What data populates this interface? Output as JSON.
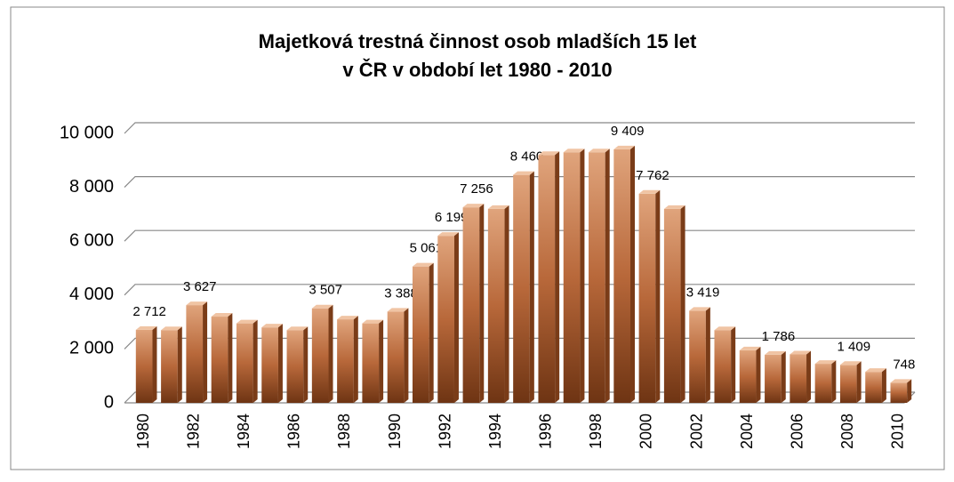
{
  "chart_data": {
    "type": "bar",
    "title": [
      "Majetková trestná činnost osob mladších 15 let",
      "v ČR v období let 1980 - 2010"
    ],
    "categories": [
      "1980",
      null,
      "1982",
      null,
      "1984",
      null,
      "1986",
      null,
      "1988",
      null,
      "1990",
      null,
      "1992",
      null,
      "1994",
      null,
      "1996",
      null,
      "1998",
      null,
      "2000",
      null,
      "2002",
      null,
      "2004",
      null,
      "2006",
      null,
      "2008",
      null,
      "2010"
    ],
    "values": [
      2712,
      2700,
      3627,
      3200,
      2950,
      2800,
      2700,
      3507,
      3100,
      2950,
      3388,
      5061,
      6199,
      7256,
      7200,
      8460,
      9200,
      9300,
      9300,
      9409,
      7762,
      7200,
      3419,
      2700,
      1950,
      1786,
      1800,
      1450,
      1409,
      1150,
      748
    ],
    "value_labels": [
      "2 712",
      null,
      "3 627",
      null,
      null,
      null,
      null,
      "3 507",
      null,
      null,
      "3 388",
      "5 061",
      "6 199",
      "7 256",
      null,
      "8 460",
      null,
      null,
      null,
      "9 409",
      "7 762",
      null,
      "3 419",
      null,
      null,
      "1 786",
      null,
      null,
      "1 409",
      null,
      "748"
    ],
    "color": "#b8683a",
    "ylim": [
      0,
      10000
    ],
    "yticks": [
      0,
      {
        "value": 2000,
        "label": "2 000"
      },
      {
        "value": 4000,
        "label": "4 000"
      },
      {
        "value": 6000,
        "label": "6 000"
      },
      {
        "value": 8000,
        "label": "8 000"
      },
      {
        "value": 10000,
        "label": "10 000"
      }
    ],
    "grid": true
  }
}
